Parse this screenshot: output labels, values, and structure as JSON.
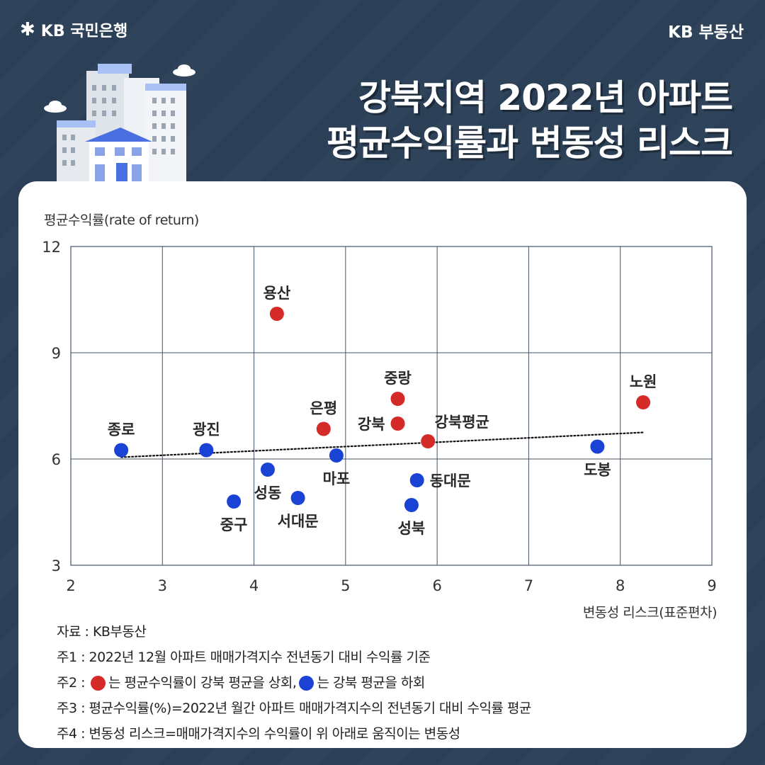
{
  "header": {
    "bank_brand": "KB 국민은행",
    "right_brand": "KB 부동산",
    "title_line1": "강북지역 2022년 아파트",
    "title_line2": "평균수익률과 변동성 리스크"
  },
  "colors": {
    "background": "#2c4158",
    "above_avg": "#d42a28",
    "below_avg": "#1a43d6"
  },
  "chart_data": {
    "type": "scatter",
    "ylabel": "평균수익률(rate of return)",
    "xlabel": "변동성 리스크(표준편차)",
    "xlim": [
      2,
      9
    ],
    "ylim": [
      3,
      12
    ],
    "xticks": [
      2,
      3,
      4,
      5,
      6,
      7,
      8,
      9
    ],
    "yticks": [
      3,
      6,
      9,
      12
    ],
    "grid": true,
    "trendline": {
      "style": "dotted",
      "from": [
        2.55,
        6.05
      ],
      "to": [
        8.25,
        6.75
      ]
    },
    "points": [
      {
        "name": "용산",
        "x": 4.25,
        "y": 10.1,
        "group": "above",
        "label_pos": "top"
      },
      {
        "name": "중랑",
        "x": 5.57,
        "y": 7.7,
        "group": "above",
        "label_pos": "top"
      },
      {
        "name": "노원",
        "x": 8.25,
        "y": 7.6,
        "group": "above",
        "label_pos": "top"
      },
      {
        "name": "은평",
        "x": 4.76,
        "y": 6.85,
        "group": "above",
        "label_pos": "top"
      },
      {
        "name": "강북",
        "x": 5.57,
        "y": 7.0,
        "group": "above",
        "label_pos": "left"
      },
      {
        "name": "강북평균",
        "x": 5.9,
        "y": 6.5,
        "group": "above",
        "label_pos": "top-right"
      },
      {
        "name": "종로",
        "x": 2.55,
        "y": 6.25,
        "group": "below",
        "label_pos": "top"
      },
      {
        "name": "광진",
        "x": 3.48,
        "y": 6.25,
        "group": "below",
        "label_pos": "top"
      },
      {
        "name": "마포",
        "x": 4.9,
        "y": 6.1,
        "group": "below",
        "label_pos": "bottom"
      },
      {
        "name": "도봉",
        "x": 7.75,
        "y": 6.35,
        "group": "below",
        "label_pos": "bottom"
      },
      {
        "name": "성동",
        "x": 4.15,
        "y": 5.7,
        "group": "below",
        "label_pos": "bottom"
      },
      {
        "name": "동대문",
        "x": 5.78,
        "y": 5.4,
        "group": "below",
        "label_pos": "right"
      },
      {
        "name": "중구",
        "x": 3.78,
        "y": 4.8,
        "group": "below",
        "label_pos": "bottom"
      },
      {
        "name": "서대문",
        "x": 4.48,
        "y": 4.9,
        "group": "below",
        "label_pos": "bottom"
      },
      {
        "name": "성북",
        "x": 5.72,
        "y": 4.7,
        "group": "below",
        "label_pos": "bottom"
      }
    ]
  },
  "notes": {
    "source": "자료 : KB부동산",
    "note1": "주1 : 2022년 12월 아파트 매매가격지수 전년동기 대비 수익률 기준",
    "note2_prefix": "주2 : ",
    "note2_red": "는 평균수익률이 강북 평균을 상회,",
    "note2_blue": "는 강북 평균을 하회",
    "note3": "주3 : 평균수익률(%)=2022년 월간 아파트 매매가격지수의 전년동기 대비 수익률 평균",
    "note4": "주4 : 변동성 리스크=매매가격지수의 수익률이 위 아래로 움직이는 변동성"
  }
}
